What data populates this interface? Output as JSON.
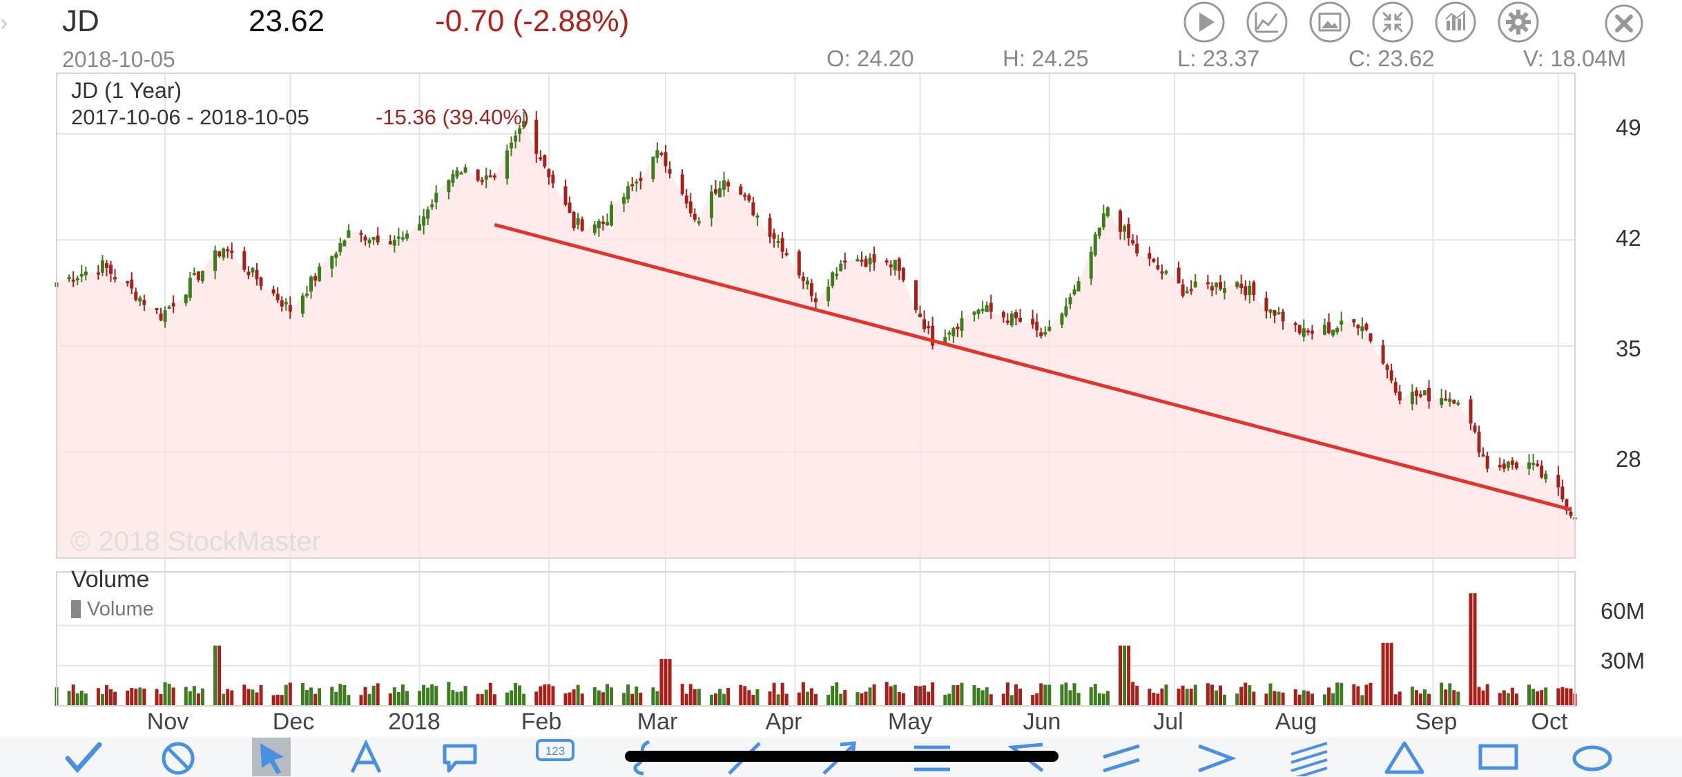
{
  "quote": {
    "symbol": "JD",
    "price": "23.62",
    "change": "-0.70 (-2.88%)",
    "date": "2018-10-05",
    "open": "O: 24.20",
    "high": "H: 24.25",
    "low": "L: 23.37",
    "close": "C: 23.62",
    "volume": "V: 18.04M"
  },
  "toolbar": {
    "icons": [
      "play-icon",
      "line-chart-icon",
      "image-icon",
      "collapse-icon",
      "bar-chart-icon",
      "settings-gear-icon",
      "close-icon"
    ]
  },
  "chart": {
    "title": "JD (1 Year)",
    "range": "2017-10-06 - 2018-10-05",
    "range_change": "-15.36 (39.40%)",
    "watermark": "© 2018 StockMaster",
    "volume_title": "Volume",
    "volume_legend": "Volume"
  },
  "colors": {
    "up": "#3e7d1f",
    "down": "#a8201a",
    "trendline": "#e0342c",
    "area_fill": "#fde6e6",
    "accent": "#4a90e2"
  },
  "drawing_tools": [
    "checkmark-icon",
    "cancel-icon",
    "pointer-arrow-icon",
    "text-icon",
    "callout-icon",
    "counter-123-icon",
    "freehand-curve-icon",
    "line-icon",
    "arrow-icon",
    "horizontal-lines-icon",
    "angle-icon",
    "parallel-lines-icon",
    "greater-than-icon",
    "multi-lines-icon",
    "triangle-icon",
    "rectangle-icon",
    "ellipse-icon"
  ],
  "chart_data": {
    "type": "candlestick",
    "title": "JD (1 Year)",
    "yticks": [
      "49",
      "42",
      "35",
      "28"
    ],
    "ylim": [
      21,
      53
    ],
    "volume_yticks": [
      "60M",
      "30M"
    ],
    "volume_ylim": [
      0,
      100
    ],
    "x_months": [
      "Nov",
      "Dec",
      "2018",
      "Feb",
      "Mar",
      "Apr",
      "May",
      "Jun",
      "Jul",
      "Aug",
      "Sep",
      "Oct"
    ],
    "price_anchors": [
      [
        "2017-10-06",
        39.2
      ],
      [
        "2017-10-17",
        40.3
      ],
      [
        "2017-10-31",
        37.0
      ],
      [
        "2017-11-15",
        41.5
      ],
      [
        "2017-12-01",
        37.4
      ],
      [
        "2017-12-15",
        42.4
      ],
      [
        "2017-12-29",
        42.0
      ],
      [
        "2018-01-10",
        46.8
      ],
      [
        "2018-01-19",
        45.8
      ],
      [
        "2018-01-26",
        49.8
      ],
      [
        "2018-02-07",
        43.0
      ],
      [
        "2018-02-14",
        43.2
      ],
      [
        "2018-02-28",
        47.9
      ],
      [
        "2018-03-08",
        43.0
      ],
      [
        "2018-03-15",
        46.3
      ],
      [
        "2018-03-29",
        41.6
      ],
      [
        "2018-04-06",
        38.2
      ],
      [
        "2018-04-13",
        40.9
      ],
      [
        "2018-04-25",
        40.3
      ],
      [
        "2018-05-04",
        35.4
      ],
      [
        "2018-05-15",
        37.5
      ],
      [
        "2018-05-25",
        36.6
      ],
      [
        "2018-05-31",
        35.5
      ],
      [
        "2018-06-08",
        38.9
      ],
      [
        "2018-06-15",
        44.2
      ],
      [
        "2018-06-22",
        41.2
      ],
      [
        "2018-07-03",
        38.7
      ],
      [
        "2018-07-16",
        39.2
      ],
      [
        "2018-08-01",
        35.8
      ],
      [
        "2018-08-15",
        36.6
      ],
      [
        "2018-08-24",
        31.8
      ],
      [
        "2018-09-07",
        31.6
      ],
      [
        "2018-09-14",
        27.1
      ],
      [
        "2018-09-24",
        27.2
      ],
      [
        "2018-10-01",
        25.4
      ],
      [
        "2018-10-05",
        23.6
      ]
    ],
    "volume_spikes_M": [
      [
        "2017-11-13",
        45
      ],
      [
        "2018-03-01",
        35
      ],
      [
        "2018-06-19",
        45
      ],
      [
        "2018-08-21",
        47
      ],
      [
        "2018-09-10",
        84
      ]
    ],
    "trendline": {
      "start": [
        "2018-01-19",
        43.0
      ],
      "end": [
        "2018-10-04",
        24.2
      ]
    }
  }
}
